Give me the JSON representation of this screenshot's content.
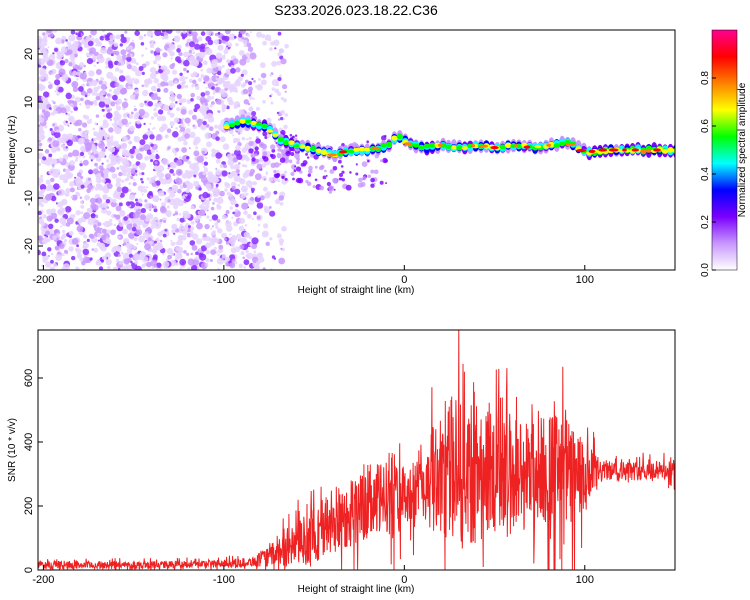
{
  "title": "S233.2026.023.18.22.C36",
  "chart_data": [
    {
      "type": "heatmap",
      "name": "spectrogram",
      "xlabel": "Height of straight line (km)",
      "ylabel": "Frequency (Hz)",
      "xlim": [
        -203,
        150
      ],
      "ylim": [
        -25,
        25
      ],
      "xticks": [
        -200,
        -100,
        0,
        100
      ],
      "yticks": [
        -20,
        -10,
        0,
        10,
        20
      ],
      "colorbar": {
        "label": "Normalized spectral amplitude",
        "range": [
          0,
          1
        ],
        "ticks": [
          "0.0",
          "0.2",
          "0.4",
          "0.6",
          "0.8"
        ],
        "colors": [
          "#ffffff",
          "#c896ff",
          "#7a00ff",
          "#0000ff",
          "#00ffff",
          "#00ff00",
          "#ffff00",
          "#ff8000",
          "#ff0000",
          "#ff0090"
        ]
      },
      "signal_ridge": {
        "x": [
          -100,
          -90,
          -80,
          -75,
          -70,
          -60,
          -50,
          -40,
          -30,
          -20,
          -10,
          -5,
          0,
          10,
          20,
          30,
          40,
          50,
          60,
          70,
          80,
          90,
          95,
          100,
          110,
          120,
          130,
          140,
          150
        ],
        "y": [
          5,
          6,
          5,
          4,
          2,
          1,
          0,
          -1,
          0,
          0,
          1,
          3,
          1.5,
          0.5,
          1,
          0.5,
          1,
          0.5,
          1,
          0.5,
          1,
          1.5,
          0.5,
          -0.5,
          0,
          0,
          0,
          0,
          0
        ]
      },
      "noise_region_x": [
        -203,
        -75
      ]
    },
    {
      "type": "line",
      "name": "snr",
      "xlabel": "Height of straight line (km)",
      "ylabel": "SNR (10 * v/v)",
      "xlim": [
        -203,
        150
      ],
      "ylim": [
        0,
        750
      ],
      "xticks": [
        -200,
        -100,
        0,
        100
      ],
      "yticks": [
        0,
        200,
        400,
        600
      ],
      "color": "#ee2222",
      "envelope": {
        "x": [
          -203,
          -150,
          -100,
          -85,
          -75,
          -70,
          -60,
          -50,
          -40,
          -30,
          -20,
          -10,
          -5,
          0,
          10,
          20,
          30,
          35,
          40,
          50,
          60,
          70,
          80,
          90,
          100,
          110,
          120,
          130,
          140,
          150
        ],
        "center": [
          15,
          15,
          20,
          25,
          40,
          60,
          80,
          110,
          150,
          180,
          200,
          230,
          260,
          220,
          260,
          300,
          330,
          350,
          320,
          320,
          300,
          300,
          320,
          300,
          280,
          310,
          310,
          310,
          310,
          310
        ],
        "spread": [
          12,
          12,
          12,
          15,
          30,
          50,
          70,
          90,
          110,
          110,
          110,
          120,
          150,
          80,
          140,
          180,
          250,
          300,
          240,
          200,
          200,
          170,
          180,
          180,
          120,
          30,
          30,
          30,
          30,
          30
        ]
      }
    }
  ]
}
